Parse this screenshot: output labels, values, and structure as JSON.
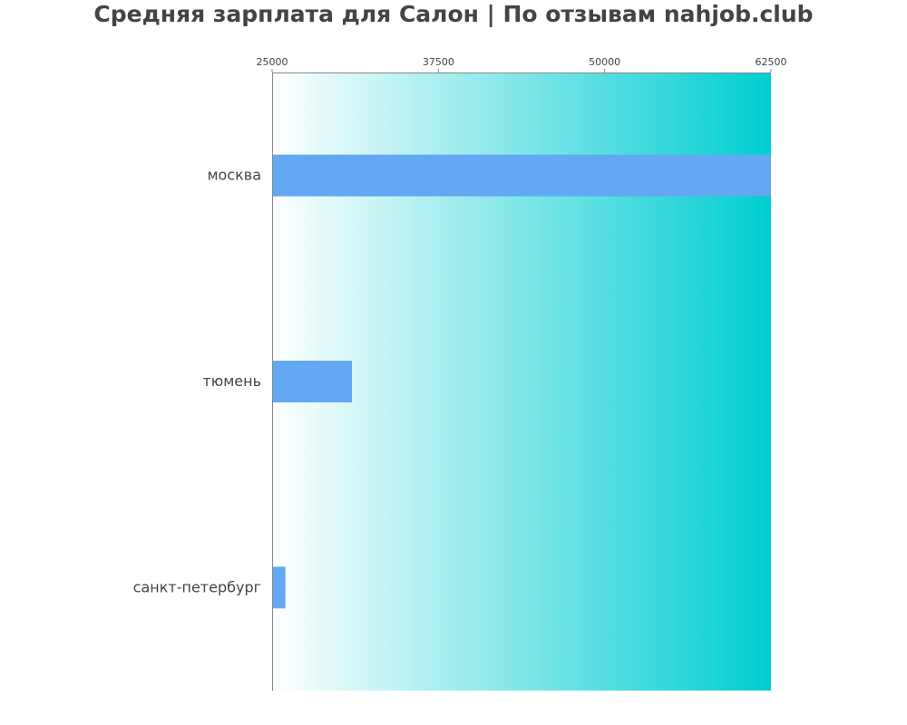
{
  "chart_data": {
    "type": "bar",
    "orientation": "horizontal",
    "title": "Средняя зарплата для Салон | По отзывам nahjob.club",
    "categories": [
      "москва",
      "тюмень",
      "санкт-петербург"
    ],
    "values": [
      62500,
      31000,
      26000
    ],
    "xlim": [
      25000,
      62500
    ],
    "xticks": [
      "25000",
      "37500",
      "50000",
      "62500"
    ],
    "tick_position": "top",
    "grid": false,
    "legend": "none",
    "bar_color": "#63a8f3",
    "background_gradient": [
      "#ffffff",
      "#00ced1"
    ]
  }
}
